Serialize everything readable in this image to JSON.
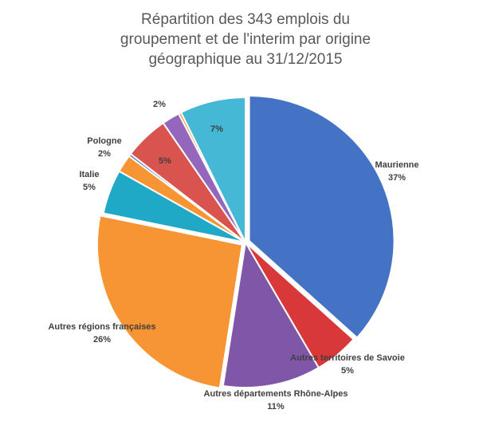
{
  "chart_data": {
    "type": "pie",
    "title_lines": [
      "Répartition des 343 emplois du",
      "groupement et de l'interim par origine",
      "géographique au 31/12/2015"
    ],
    "slices": [
      {
        "label": "Maurienne",
        "pct_label": "37%",
        "value": 37,
        "color": "#4472C4",
        "explode": true
      },
      {
        "label": "Autres territoires de Savoie",
        "pct_label": "5%",
        "value": 5,
        "color": "#D9383A",
        "explode": false
      },
      {
        "label": "Autres départements Rhône-Alpes",
        "pct_label": "11%",
        "value": 11,
        "color": "#8057A8",
        "explode": false
      },
      {
        "label": "Autres régions françaises",
        "pct_label": "26%",
        "value": 26,
        "color": "#F79433",
        "explode": true
      },
      {
        "label": "Italie",
        "pct_label": "5%",
        "value": 5,
        "color": "#1FA9C7",
        "explode": false
      },
      {
        "label": "Pologne",
        "pct_label": "2%",
        "value": 2,
        "color": "#F79433",
        "explode": false
      },
      {
        "label": "",
        "pct_label": "",
        "value": 0.3,
        "color": "#4472C4",
        "explode": false
      },
      {
        "label": "",
        "pct_label": "5%",
        "value": 5,
        "color": "#D9534F",
        "explode": false
      },
      {
        "label": "",
        "pct_label": "2%",
        "value": 2,
        "color": "#9467BD",
        "explode": false
      },
      {
        "label": "",
        "pct_label": "",
        "value": 0.3,
        "color": "#F79433",
        "explode": false
      },
      {
        "label": "",
        "pct_label": "7%",
        "value": 7.4,
        "color": "#45B8D6",
        "explode": false
      }
    ]
  }
}
